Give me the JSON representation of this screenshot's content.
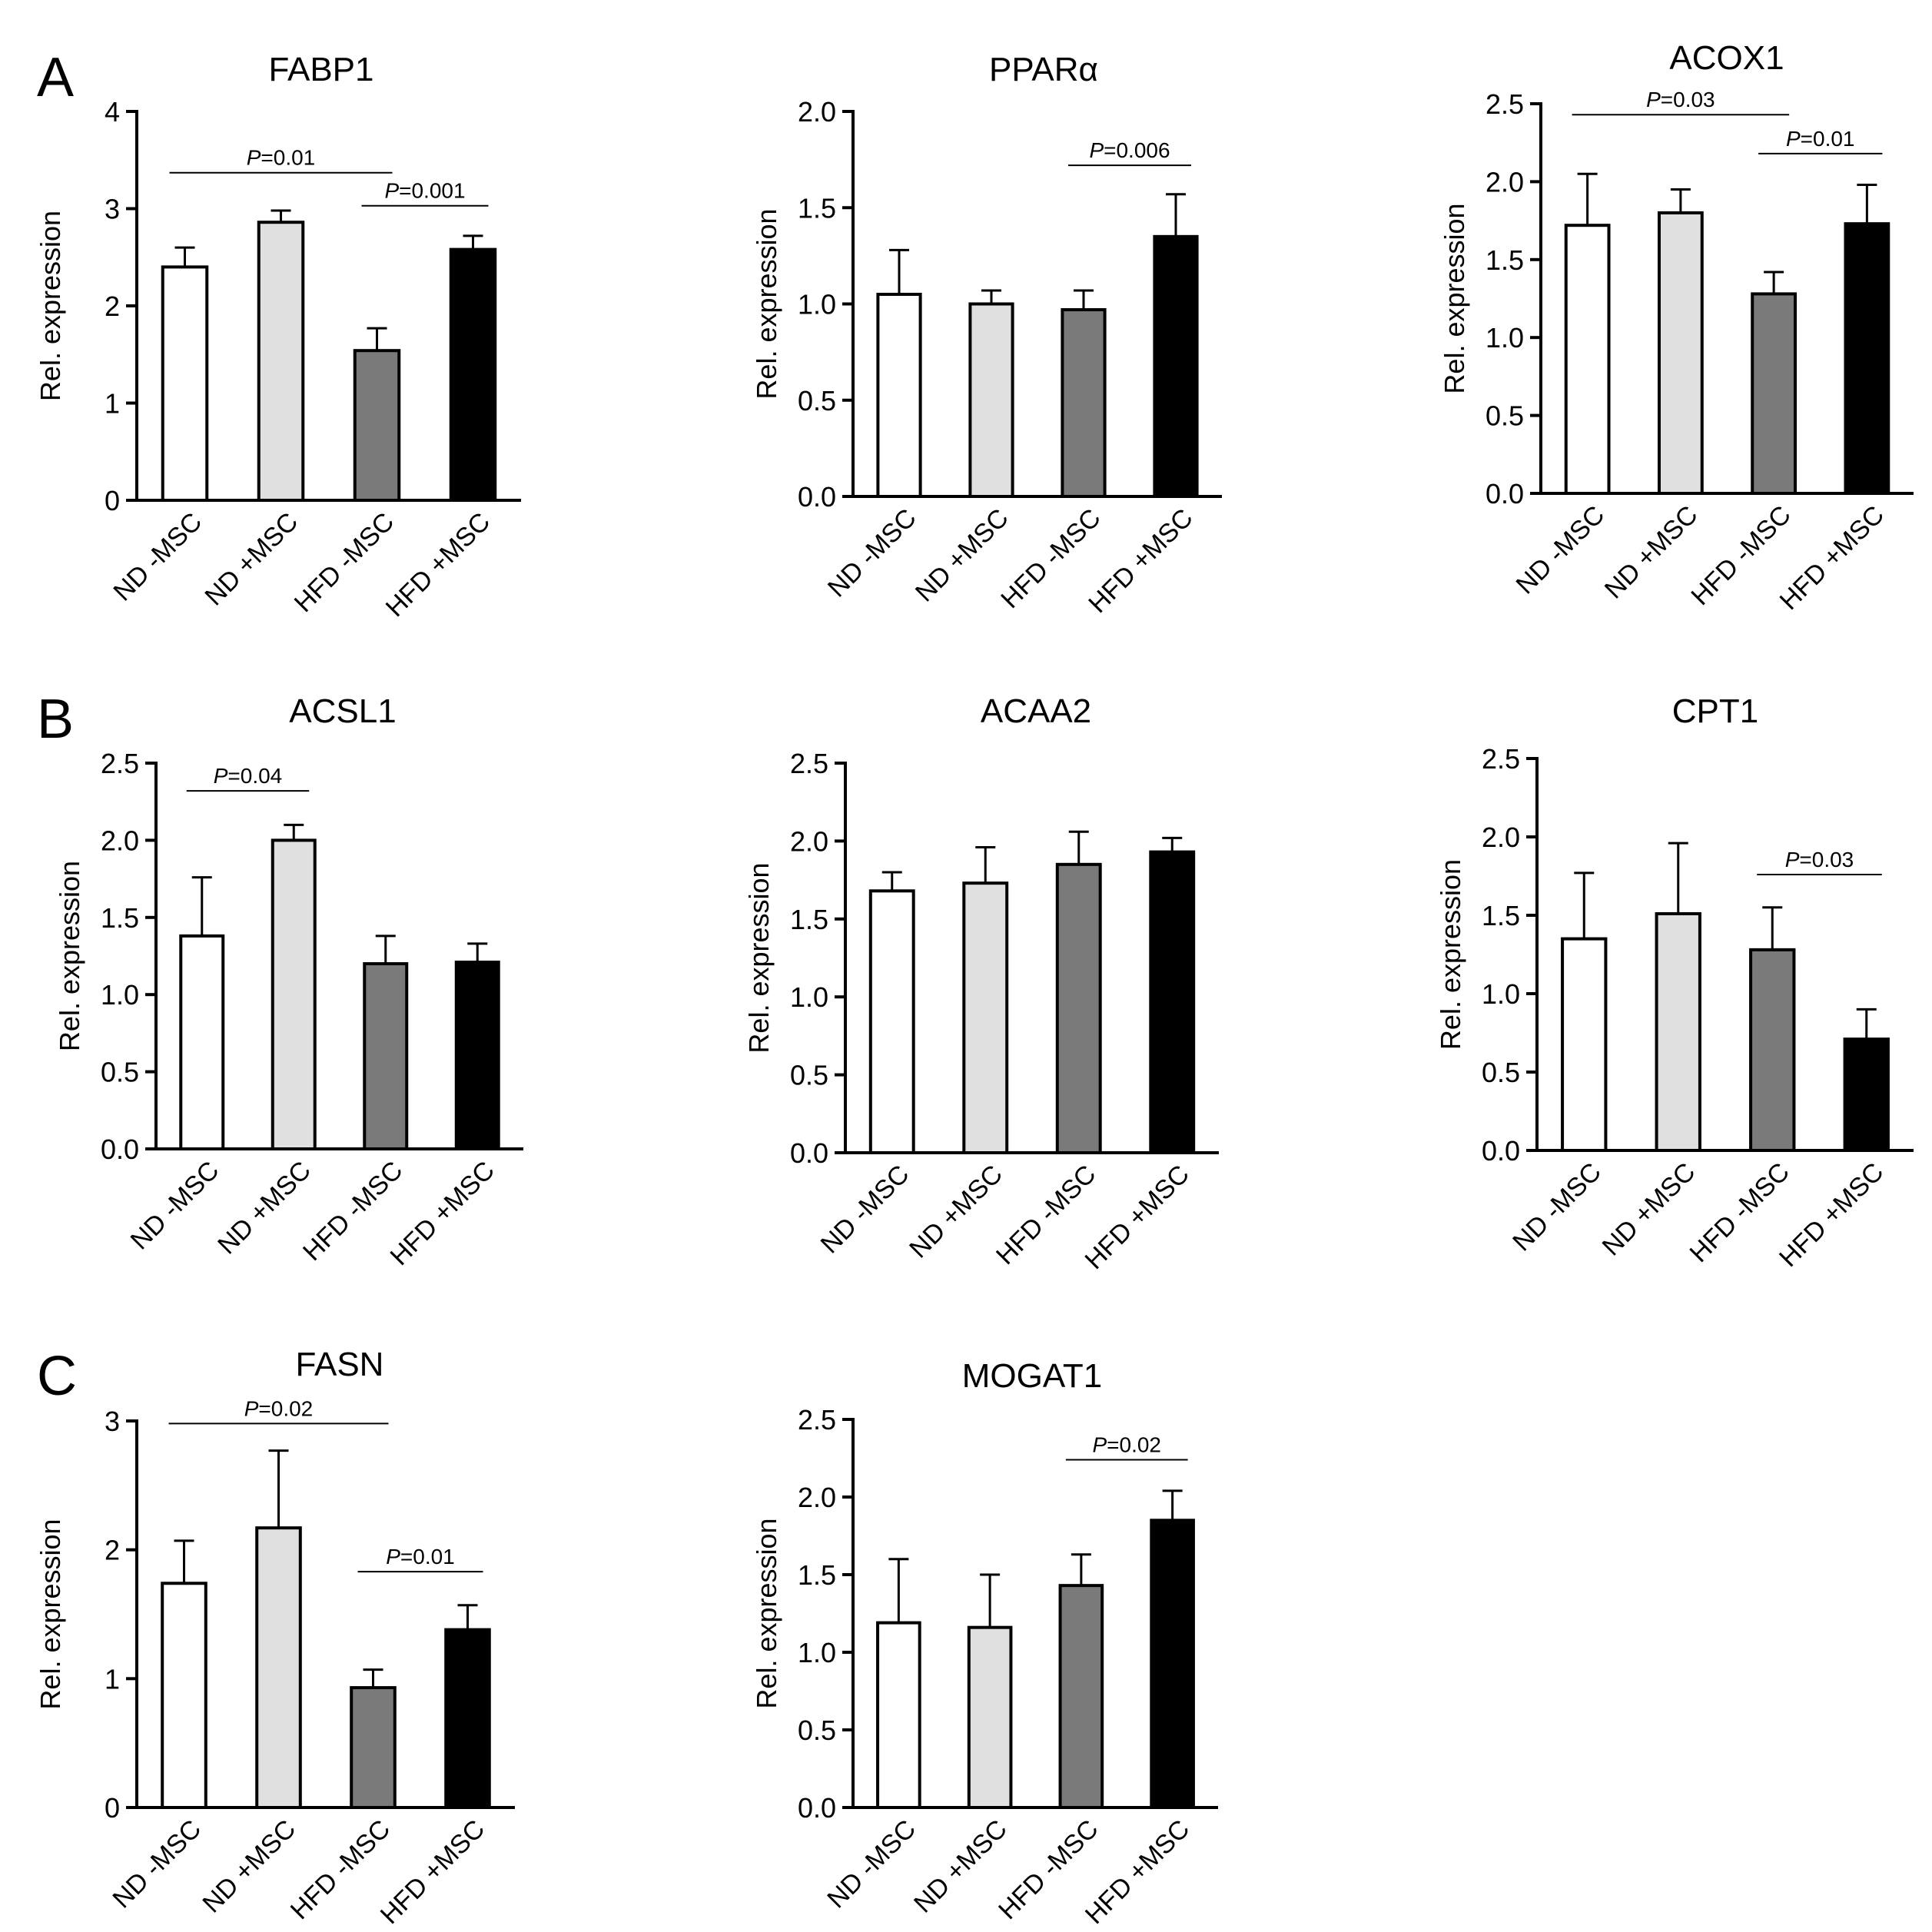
{
  "panel_labels": [
    "A",
    "B",
    "C"
  ],
  "y_axis_label": "Rel.  expression",
  "p_prefix": "P",
  "categories": [
    "ND -MSC",
    "ND +MSC",
    "HFD -MSC",
    "HFD +MSC"
  ],
  "colors": {
    "nd_minus": "#ffffff",
    "nd_plus": "#e0e0e0",
    "hfd_minus": "#7a7a7a",
    "hfd_plus": "#000000",
    "axis": "#000000"
  },
  "chart_data": [
    {
      "type": "bar",
      "title": "FABP1",
      "categories": [
        "ND -MSC",
        "ND +MSC",
        "HFD -MSC",
        "HFD +MSC"
      ],
      "values": [
        2.4,
        2.86,
        1.54,
        2.58
      ],
      "errors": [
        0.2,
        0.12,
        0.23,
        0.14
      ],
      "ylim": [
        0,
        4
      ],
      "yticks": [
        "0",
        "1",
        "2",
        "3",
        "4"
      ],
      "ylabel": "Rel.  expression",
      "annotations": [
        {
          "from": 0,
          "to": 2,
          "text": "=0.01",
          "y": 3.37
        },
        {
          "from": 2,
          "to": 3,
          "text": "=0.001",
          "y": 3.03
        }
      ]
    },
    {
      "type": "bar",
      "title": "PPARα",
      "categories": [
        "ND -MSC",
        "ND +MSC",
        "HFD -MSC",
        "HFD +MSC"
      ],
      "values": [
        1.05,
        1.0,
        0.97,
        1.35
      ],
      "errors": [
        0.23,
        0.07,
        0.1,
        0.22
      ],
      "ylim": [
        0,
        2
      ],
      "yticks": [
        "0.0",
        "0.5",
        "1.0",
        "1.5",
        "2.0"
      ],
      "ylabel": "Rel.  expression",
      "annotations": [
        {
          "from": 2,
          "to": 3,
          "text": "=0.006",
          "y": 1.72
        }
      ]
    },
    {
      "type": "bar",
      "title": "ACOX1",
      "categories": [
        "ND -MSC",
        "ND +MSC",
        "HFD -MSC",
        "HFD +MSC"
      ],
      "values": [
        1.72,
        1.8,
        1.28,
        1.73
      ],
      "errors": [
        0.33,
        0.15,
        0.14,
        0.25
      ],
      "ylim": [
        0,
        2.5
      ],
      "yticks": [
        "0.0",
        "0.5",
        "1.0",
        "1.5",
        "2.0",
        "2.5"
      ],
      "ylabel": "Rel.  expression",
      "annotations": [
        {
          "from": 0,
          "to": 2,
          "text": "=0.03",
          "y": 2.43
        },
        {
          "from": 2,
          "to": 3,
          "text": "=0.01",
          "y": 2.18
        }
      ]
    },
    {
      "type": "bar",
      "title": "ACSL1",
      "categories": [
        "ND -MSC",
        "ND +MSC",
        "HFD -MSC",
        "HFD +MSC"
      ],
      "values": [
        1.38,
        2.0,
        1.2,
        1.21
      ],
      "errors": [
        0.38,
        0.1,
        0.18,
        0.12
      ],
      "ylim": [
        0,
        2.5
      ],
      "yticks": [
        "0.0",
        "0.5",
        "1.0",
        "1.5",
        "2.0",
        "2.5"
      ],
      "ylabel": "Rel.  expression",
      "annotations": [
        {
          "from": 0,
          "to": 1,
          "text": "=0.04",
          "y": 2.32
        }
      ]
    },
    {
      "type": "bar",
      "title": "ACAA2",
      "categories": [
        "ND -MSC",
        "ND +MSC",
        "HFD -MSC",
        "HFD +MSC"
      ],
      "values": [
        1.68,
        1.73,
        1.85,
        1.93
      ],
      "errors": [
        0.12,
        0.23,
        0.21,
        0.09
      ],
      "ylim": [
        0,
        2.5
      ],
      "yticks": [
        "0.0",
        "0.5",
        "1.0",
        "1.5",
        "2.0",
        "2.5"
      ],
      "ylabel": "Rel.  expression",
      "annotations": []
    },
    {
      "type": "bar",
      "title": "CPT1",
      "categories": [
        "ND -MSC",
        "ND +MSC",
        "HFD -MSC",
        "HFD +MSC"
      ],
      "values": [
        1.35,
        1.51,
        1.28,
        0.71
      ],
      "errors": [
        0.42,
        0.45,
        0.27,
        0.19
      ],
      "ylim": [
        0,
        2.5
      ],
      "yticks": [
        "0.0",
        "0.5",
        "1.0",
        "1.5",
        "2.0",
        "2.5"
      ],
      "ylabel": "Rel.  expression",
      "annotations": [
        {
          "from": 2,
          "to": 3,
          "text": "=0.03",
          "y": 1.76
        }
      ]
    },
    {
      "type": "bar",
      "title": "FASN",
      "categories": [
        "ND -MSC",
        "ND +MSC",
        "HFD -MSC",
        "HFD +MSC"
      ],
      "values": [
        1.74,
        2.17,
        0.93,
        1.38
      ],
      "errors": [
        0.33,
        0.6,
        0.14,
        0.19
      ],
      "ylim": [
        0,
        3
      ],
      "yticks": [
        "0",
        "1",
        "2",
        "3"
      ],
      "ylabel": "Rel.  expression",
      "annotations": [
        {
          "from": 0,
          "to": 2,
          "text": "=0.02",
          "y": 2.98
        },
        {
          "from": 2,
          "to": 3,
          "text": "=0.01",
          "y": 1.83
        }
      ]
    },
    {
      "type": "bar",
      "title": "MOGAT1",
      "categories": [
        "ND -MSC",
        "ND +MSC",
        "HFD -MSC",
        "HFD +MSC"
      ],
      "values": [
        1.19,
        1.16,
        1.43,
        1.85
      ],
      "errors": [
        0.41,
        0.34,
        0.2,
        0.19
      ],
      "ylim": [
        0,
        2.5
      ],
      "yticks": [
        "0.0",
        "0.5",
        "1.0",
        "1.5",
        "2.0",
        "2.5"
      ],
      "ylabel": "Rel.  expression",
      "annotations": [
        {
          "from": 2,
          "to": 3,
          "text": "=0.02",
          "y": 2.24
        }
      ]
    }
  ]
}
